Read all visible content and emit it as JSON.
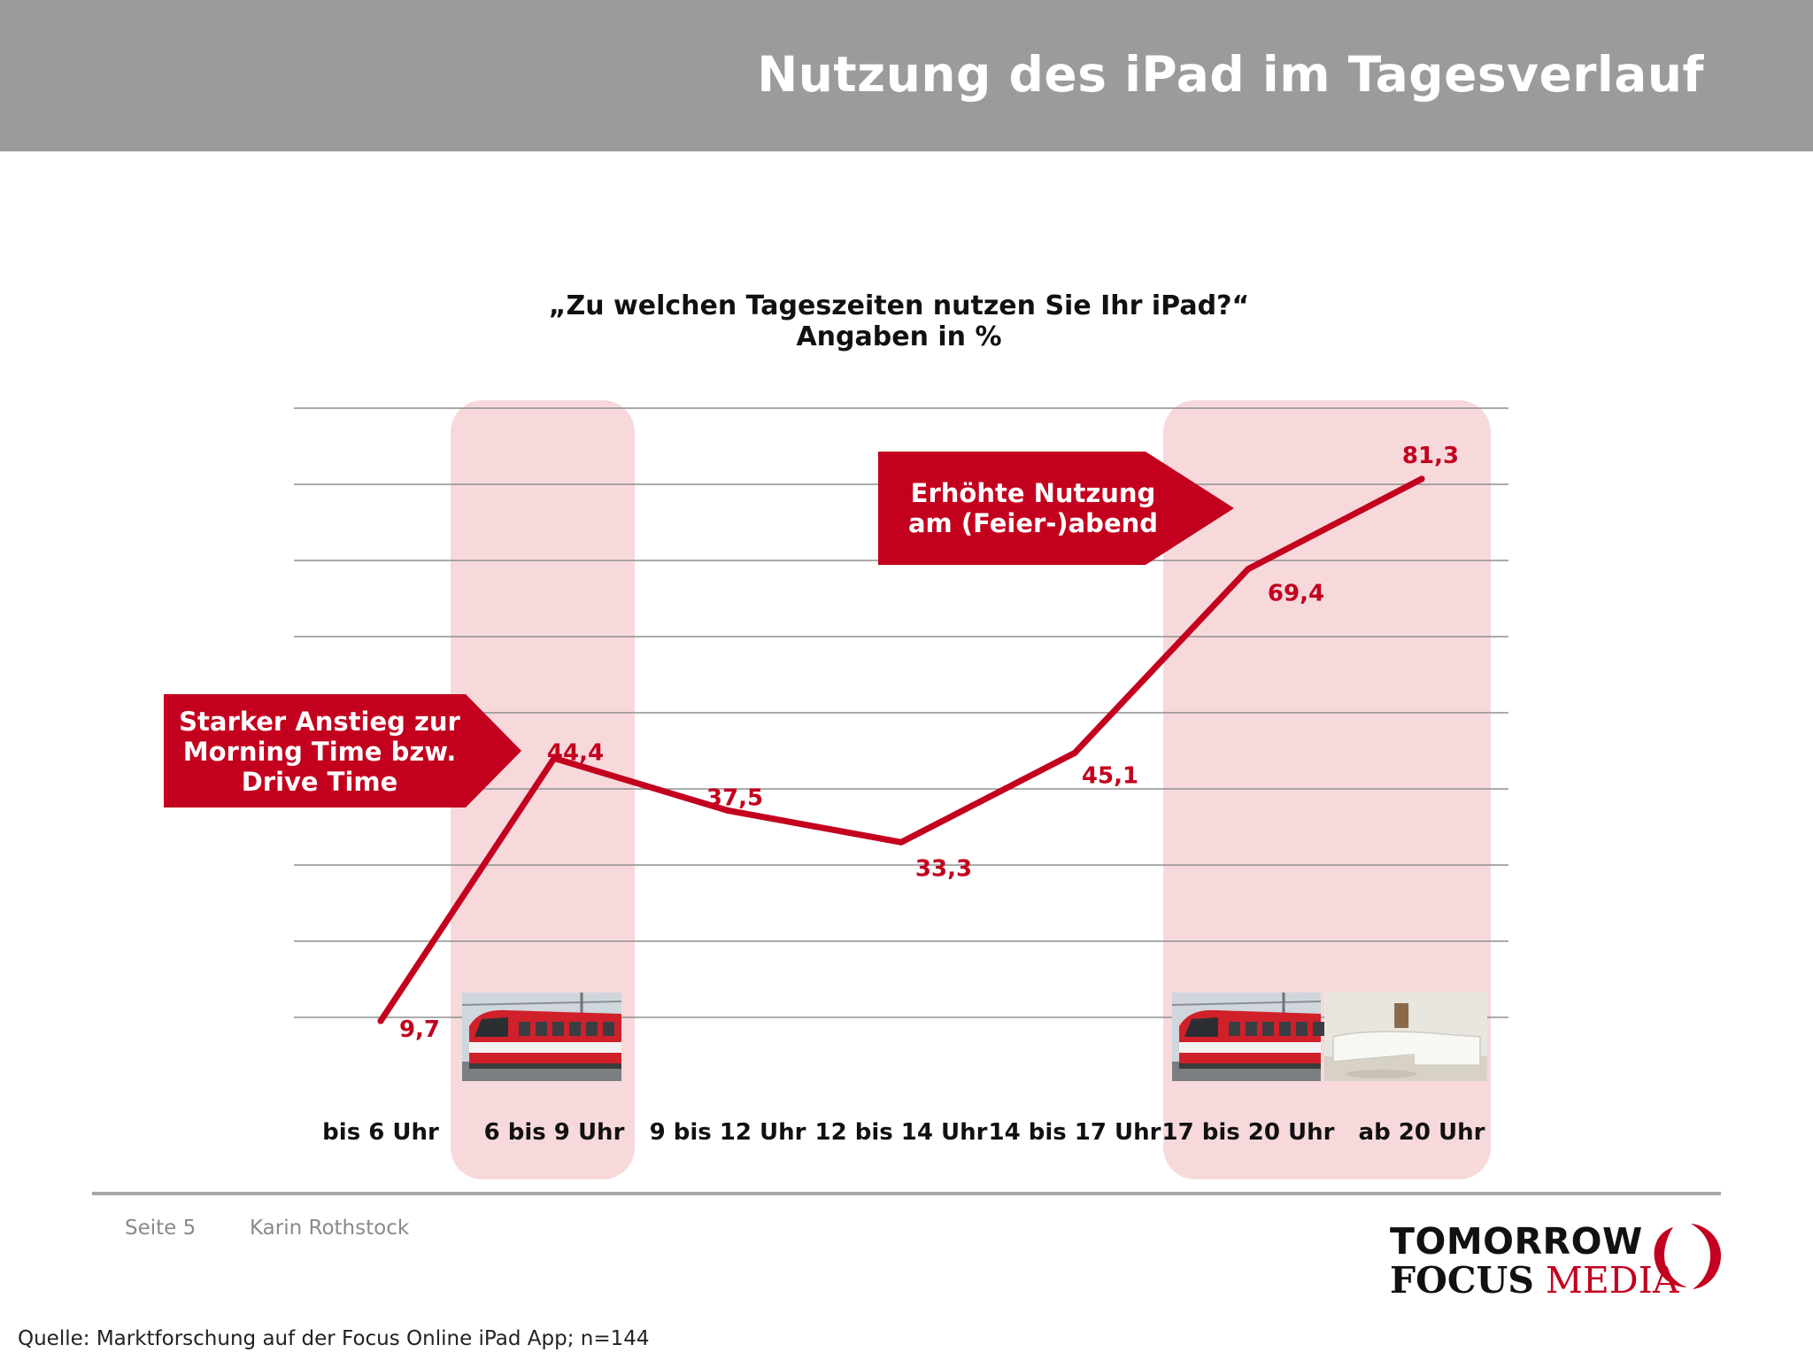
{
  "header": {
    "title": "Nutzung des iPad im Tagesverlauf"
  },
  "chart_data": {
    "type": "line",
    "title": "„Zu welchen Tageszeiten nutzen Sie Ihr iPad?“",
    "subtitle": "Angaben in %",
    "categories": [
      "bis 6 Uhr",
      "6 bis 9 Uhr",
      "9 bis 12 Uhr",
      "12 bis 14 Uhr",
      "14 bis 17 Uhr",
      "17 bis 20 Uhr",
      "ab 20 Uhr"
    ],
    "series": [
      {
        "values": [
          9.7,
          44.4,
          37.5,
          33.3,
          45.1,
          69.4,
          81.3
        ],
        "data_labels": [
          "9,7",
          "44,4",
          "37,5",
          "33,3",
          "45,1",
          "69,4",
          "81,3"
        ],
        "color": "#c3001e"
      }
    ],
    "ylim": [
      0,
      90
    ],
    "grid": true,
    "highlighted_categories": [
      "6 bis 9 Uhr",
      "17 bis 20 Uhr",
      "ab 20 Uhr"
    ],
    "annotations": [
      {
        "lines": [
          "Starker Anstieg zur",
          "Morning Time bzw.",
          "Drive Time"
        ],
        "target": "6 bis 9 Uhr"
      },
      {
        "lines": [
          "Erhöhte Nutzung",
          "am (Feier-)abend"
        ],
        "target": "17 bis 20 Uhr"
      }
    ],
    "images": [
      {
        "icon": "train-photo",
        "category": "6 bis 9 Uhr"
      },
      {
        "icon": "train-photo",
        "category": "17 bis 20 Uhr"
      },
      {
        "icon": "living-room-photo",
        "category": "ab 20 Uhr"
      }
    ]
  },
  "colors": {
    "header": "#9b9b9b",
    "accent": "#c3001e",
    "highlight": "#f7d9dc",
    "callout": "#c3001e"
  },
  "footer": {
    "page": "Seite 5",
    "author": "Karin Rothstock",
    "source": "Quelle: Marktforschung auf der Focus Online iPad App; n=144"
  },
  "logo": {
    "line1": "TOMORROW",
    "line2a": "FOCUS",
    "line2b": "MEDIA"
  }
}
